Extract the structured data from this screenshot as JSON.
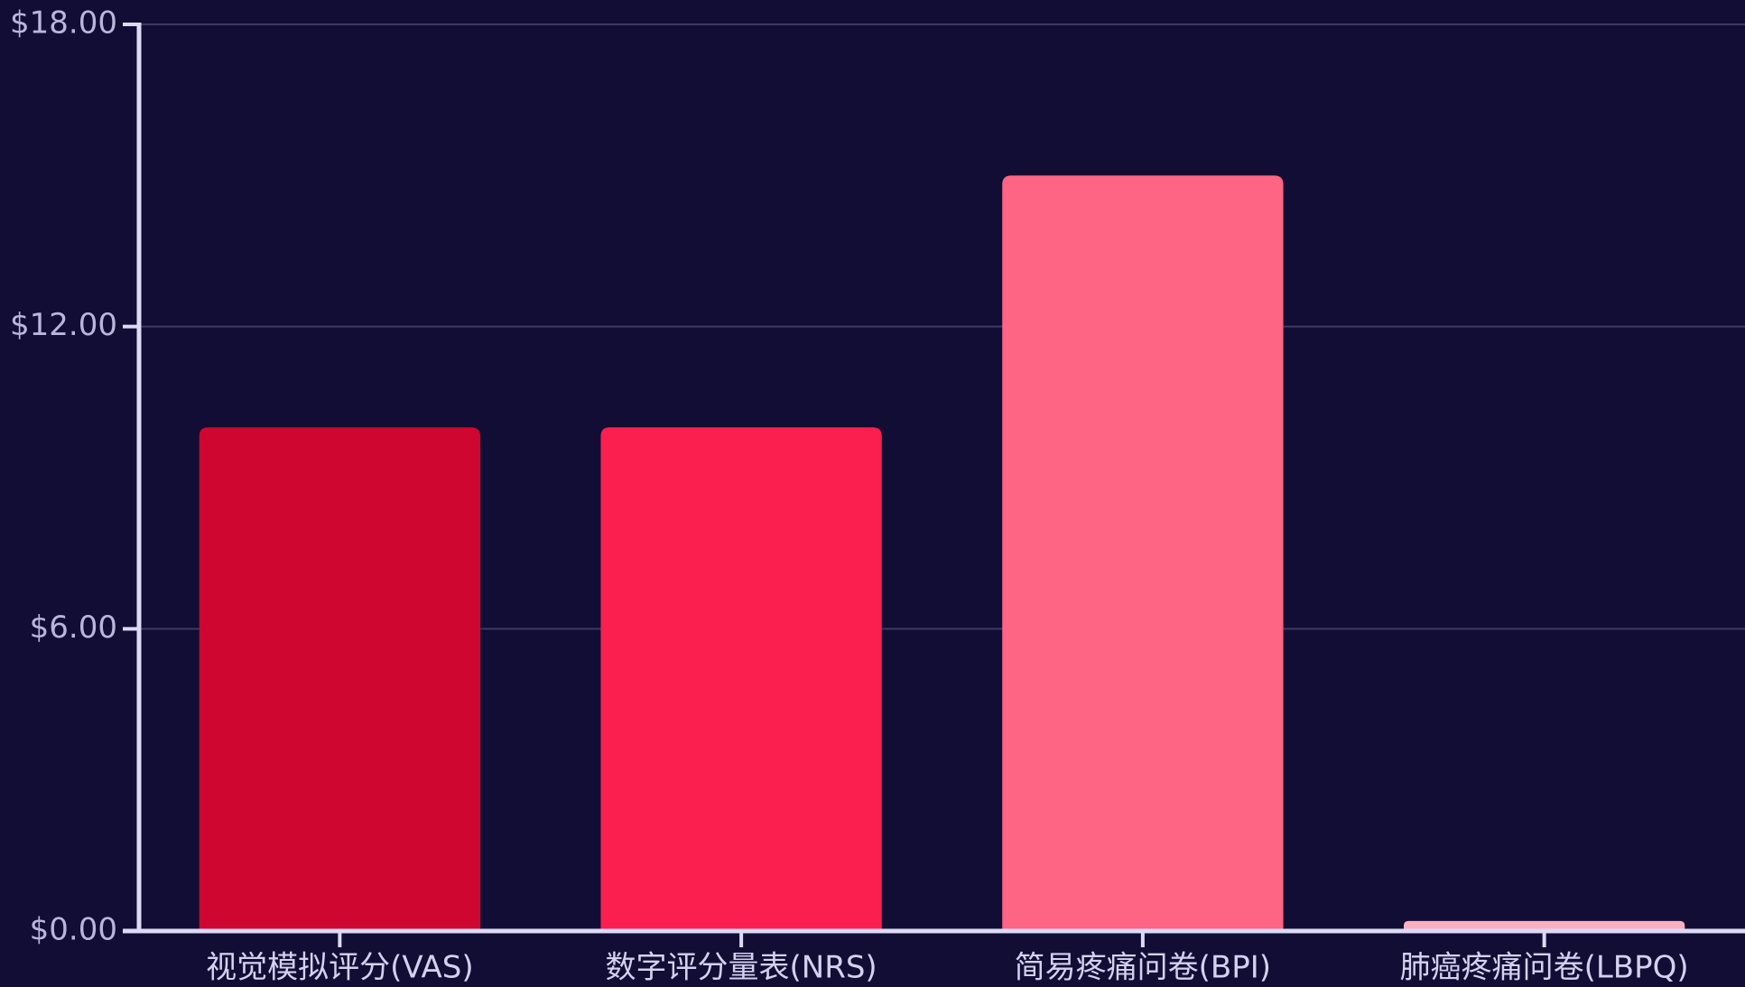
{
  "chart_data": {
    "type": "bar",
    "categories": [
      "视觉模拟评分(VAS)",
      "数字评分量表(NRS)",
      "简易疼痛问卷(BPI)",
      "肺癌疼痛问卷(LBPQ)"
    ],
    "values": [
      10.0,
      10.0,
      15.0,
      0.2
    ],
    "colors": [
      "#cf062f",
      "#fa1f4e",
      "#fe6483",
      "#fdb0bf"
    ],
    "y_ticks": [
      0,
      6,
      12,
      18
    ],
    "y_tick_labels": [
      "$0.00",
      "$6.00",
      "$12.00",
      "$18.00"
    ],
    "ylim": [
      0,
      18
    ],
    "grid": true,
    "title": "",
    "xlabel": "",
    "ylabel": "",
    "background": "#110d35",
    "axis_color": "#dcdaf5",
    "grid_color": "#3d3a68"
  }
}
